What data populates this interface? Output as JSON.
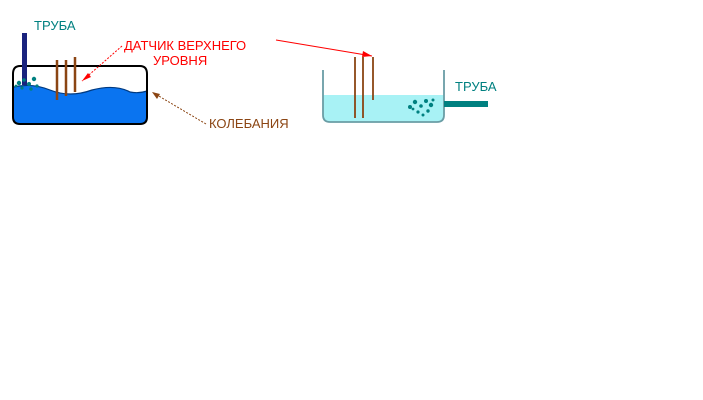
{
  "labels": {
    "pipe_left": "ТРУБА",
    "sensor_line1": "ДАТЧИК ВЕРХНЕГО",
    "sensor_line2": "УРОВНЯ",
    "oscillations": "КОЛЕБАНИЯ",
    "pipe_right": "ТРУБА"
  },
  "colors": {
    "pipe_label": "#008080",
    "sensor_label": "#ff0000",
    "oscillations_label": "#8b4513",
    "water_left": "#0a74f0",
    "water_right": "#a8f2f5",
    "pipe_left": "#1a237e",
    "pipe_right": "#008080",
    "sensor": "#8b4513",
    "bubbles": "#008080"
  },
  "icons": {
    "bubbles": "bubble-cluster-icon"
  }
}
